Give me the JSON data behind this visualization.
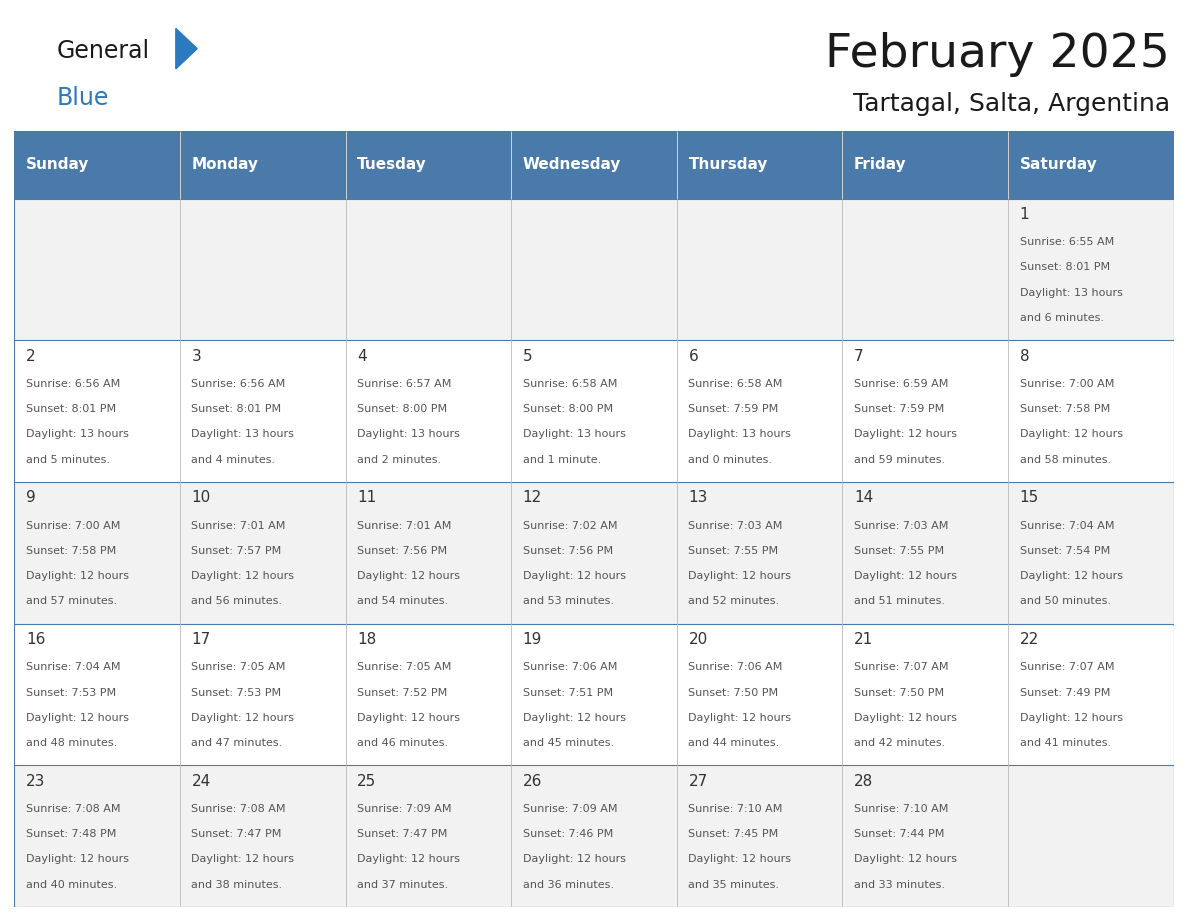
{
  "title": "February 2025",
  "subtitle": "Tartagal, Salta, Argentina",
  "days_of_week": [
    "Sunday",
    "Monday",
    "Tuesday",
    "Wednesday",
    "Thursday",
    "Friday",
    "Saturday"
  ],
  "header_bg": "#4a7aaa",
  "header_text": "#ffffff",
  "cell_bg_odd": "#f2f2f2",
  "cell_bg_even": "#ffffff",
  "line_color": "#4a7aaa",
  "border_color": "#c0c0c0",
  "day_text_color": "#333333",
  "info_text_color": "#555555",
  "title_color": "#1a1a1a",
  "subtitle_color": "#1a1a1a",
  "logo_black": "#1a1a1a",
  "logo_blue": "#2a7abf",
  "calendar": [
    [
      null,
      null,
      null,
      null,
      null,
      null,
      {
        "day": 1,
        "sunrise": "6:55 AM",
        "sunset": "8:01 PM",
        "daylight": "13 hours and 6 minutes."
      }
    ],
    [
      {
        "day": 2,
        "sunrise": "6:56 AM",
        "sunset": "8:01 PM",
        "daylight": "13 hours and 5 minutes."
      },
      {
        "day": 3,
        "sunrise": "6:56 AM",
        "sunset": "8:01 PM",
        "daylight": "13 hours and 4 minutes."
      },
      {
        "day": 4,
        "sunrise": "6:57 AM",
        "sunset": "8:00 PM",
        "daylight": "13 hours and 2 minutes."
      },
      {
        "day": 5,
        "sunrise": "6:58 AM",
        "sunset": "8:00 PM",
        "daylight": "13 hours and 1 minute."
      },
      {
        "day": 6,
        "sunrise": "6:58 AM",
        "sunset": "7:59 PM",
        "daylight": "13 hours and 0 minutes."
      },
      {
        "day": 7,
        "sunrise": "6:59 AM",
        "sunset": "7:59 PM",
        "daylight": "12 hours and 59 minutes."
      },
      {
        "day": 8,
        "sunrise": "7:00 AM",
        "sunset": "7:58 PM",
        "daylight": "12 hours and 58 minutes."
      }
    ],
    [
      {
        "day": 9,
        "sunrise": "7:00 AM",
        "sunset": "7:58 PM",
        "daylight": "12 hours and 57 minutes."
      },
      {
        "day": 10,
        "sunrise": "7:01 AM",
        "sunset": "7:57 PM",
        "daylight": "12 hours and 56 minutes."
      },
      {
        "day": 11,
        "sunrise": "7:01 AM",
        "sunset": "7:56 PM",
        "daylight": "12 hours and 54 minutes."
      },
      {
        "day": 12,
        "sunrise": "7:02 AM",
        "sunset": "7:56 PM",
        "daylight": "12 hours and 53 minutes."
      },
      {
        "day": 13,
        "sunrise": "7:03 AM",
        "sunset": "7:55 PM",
        "daylight": "12 hours and 52 minutes."
      },
      {
        "day": 14,
        "sunrise": "7:03 AM",
        "sunset": "7:55 PM",
        "daylight": "12 hours and 51 minutes."
      },
      {
        "day": 15,
        "sunrise": "7:04 AM",
        "sunset": "7:54 PM",
        "daylight": "12 hours and 50 minutes."
      }
    ],
    [
      {
        "day": 16,
        "sunrise": "7:04 AM",
        "sunset": "7:53 PM",
        "daylight": "12 hours and 48 minutes."
      },
      {
        "day": 17,
        "sunrise": "7:05 AM",
        "sunset": "7:53 PM",
        "daylight": "12 hours and 47 minutes."
      },
      {
        "day": 18,
        "sunrise": "7:05 AM",
        "sunset": "7:52 PM",
        "daylight": "12 hours and 46 minutes."
      },
      {
        "day": 19,
        "sunrise": "7:06 AM",
        "sunset": "7:51 PM",
        "daylight": "12 hours and 45 minutes."
      },
      {
        "day": 20,
        "sunrise": "7:06 AM",
        "sunset": "7:50 PM",
        "daylight": "12 hours and 44 minutes."
      },
      {
        "day": 21,
        "sunrise": "7:07 AM",
        "sunset": "7:50 PM",
        "daylight": "12 hours and 42 minutes."
      },
      {
        "day": 22,
        "sunrise": "7:07 AM",
        "sunset": "7:49 PM",
        "daylight": "12 hours and 41 minutes."
      }
    ],
    [
      {
        "day": 23,
        "sunrise": "7:08 AM",
        "sunset": "7:48 PM",
        "daylight": "12 hours and 40 minutes."
      },
      {
        "day": 24,
        "sunrise": "7:08 AM",
        "sunset": "7:47 PM",
        "daylight": "12 hours and 38 minutes."
      },
      {
        "day": 25,
        "sunrise": "7:09 AM",
        "sunset": "7:47 PM",
        "daylight": "12 hours and 37 minutes."
      },
      {
        "day": 26,
        "sunrise": "7:09 AM",
        "sunset": "7:46 PM",
        "daylight": "12 hours and 36 minutes."
      },
      {
        "day": 27,
        "sunrise": "7:10 AM",
        "sunset": "7:45 PM",
        "daylight": "12 hours and 35 minutes."
      },
      {
        "day": 28,
        "sunrise": "7:10 AM",
        "sunset": "7:44 PM",
        "daylight": "12 hours and 33 minutes."
      },
      null
    ]
  ],
  "fig_width": 11.88,
  "fig_height": 9.18,
  "dpi": 100,
  "title_fontsize": 34,
  "subtitle_fontsize": 18,
  "header_fontsize": 11,
  "day_num_fontsize": 11,
  "info_fontsize": 8.0,
  "logo_general_fontsize": 17,
  "logo_blue_fontsize": 17
}
